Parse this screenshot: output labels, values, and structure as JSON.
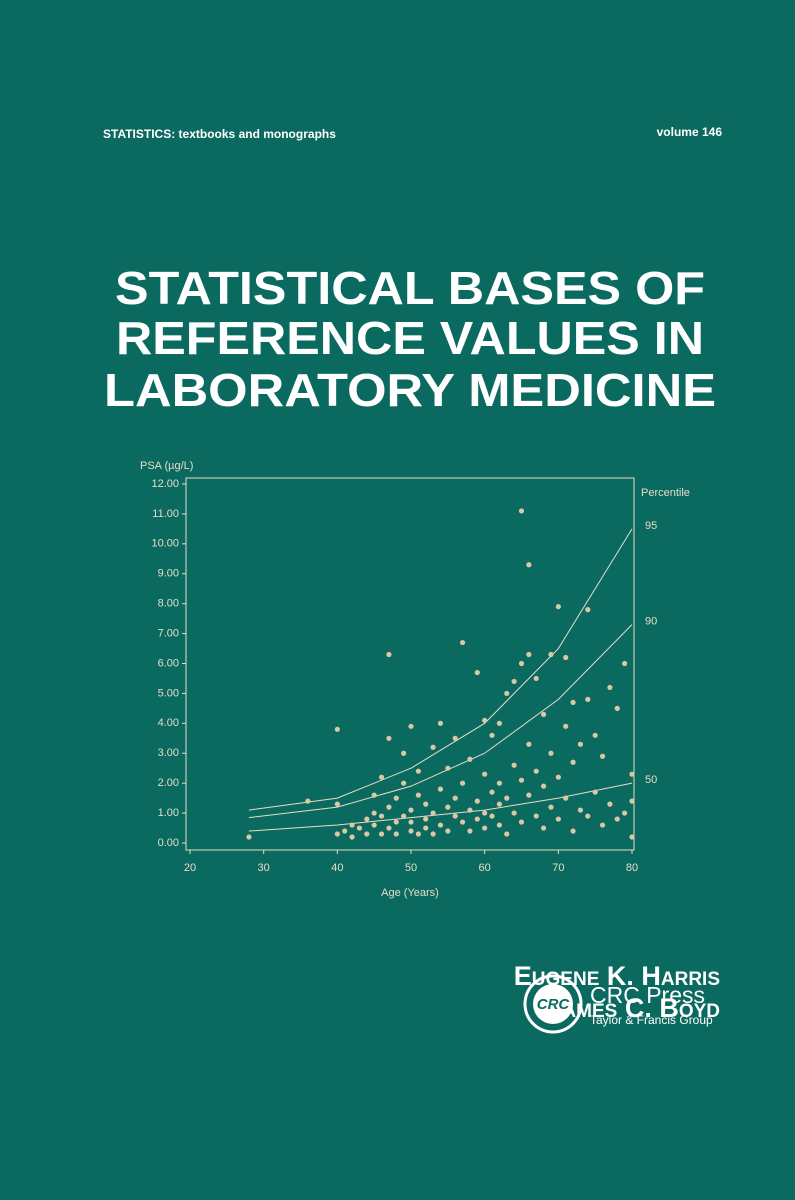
{
  "series_label": "STATISTICS: textbooks and monographs",
  "volume": "volume 146",
  "title": [
    "STATISTICAL BASES OF",
    "REFERENCE VALUES IN",
    "LABORATORY MEDICINE"
  ],
  "authors": [
    "Eugene K. Harris",
    "James C. Boyd"
  ],
  "publisher": {
    "logo": "CRC",
    "name": "CRC Press",
    "group": "Taylor & Francis Group"
  },
  "chart_data": {
    "type": "scatter",
    "y_label": "PSA (µg/L)",
    "x_label": "Age (Years)",
    "curve_legend_title": "Percentile",
    "color": "#dcc7a3",
    "xlim": [
      20,
      80
    ],
    "xticks": [
      20,
      30,
      40,
      50,
      60,
      70,
      80
    ],
    "ylim": [
      0,
      12
    ],
    "yticks": [
      {
        "value": 0,
        "label": "0.00"
      },
      {
        "value": 1,
        "label": "1.00"
      },
      {
        "value": 2,
        "label": "2.00"
      },
      {
        "value": 3,
        "label": "3.00"
      },
      {
        "value": 4,
        "label": "4.00"
      },
      {
        "value": 5,
        "label": "5.00"
      },
      {
        "value": 6,
        "label": "6.00"
      },
      {
        "value": 7,
        "label": "7.00"
      },
      {
        "value": 8,
        "label": "8.00"
      },
      {
        "value": 9,
        "label": "9.00"
      },
      {
        "value": 10,
        "label": "10.00"
      },
      {
        "value": 11,
        "label": "11.00"
      },
      {
        "value": 12,
        "label": "12.00"
      }
    ],
    "x": [
      28,
      36,
      40,
      40,
      40,
      41,
      42,
      42,
      43,
      44,
      44,
      45,
      45,
      45,
      46,
      46,
      46,
      47,
      47,
      47,
      47,
      48,
      48,
      48,
      49,
      49,
      49,
      50,
      50,
      50,
      50,
      51,
      51,
      51,
      52,
      52,
      52,
      53,
      53,
      53,
      54,
      54,
      54,
      55,
      55,
      55,
      56,
      56,
      56,
      57,
      57,
      57,
      58,
      58,
      58,
      59,
      59,
      59,
      60,
      60,
      60,
      60,
      61,
      61,
      61,
      62,
      62,
      62,
      62,
      63,
      63,
      63,
      64,
      64,
      64,
      65,
      65,
      65,
      65,
      66,
      66,
      66,
      66,
      67,
      67,
      67,
      68,
      68,
      68,
      69,
      69,
      69,
      70,
      70,
      70,
      71,
      71,
      71,
      72,
      72,
      72,
      73,
      73,
      74,
      74,
      74,
      75,
      75,
      76,
      76,
      77,
      77,
      78,
      78,
      79,
      79,
      80,
      80,
      80
    ],
    "values": [
      0.2,
      1.4,
      3.8,
      1.3,
      0.3,
      0.4,
      0.2,
      0.6,
      0.5,
      0.8,
      0.3,
      1.0,
      0.6,
      1.6,
      0.3,
      0.9,
      2.2,
      0.5,
      1.2,
      6.3,
      3.5,
      0.7,
      1.5,
      0.3,
      0.9,
      3.0,
      2.0,
      0.4,
      1.1,
      3.9,
      0.7,
      1.6,
      0.3,
      2.4,
      0.8,
      1.3,
      0.5,
      3.2,
      1.0,
      0.3,
      4.0,
      1.8,
      0.6,
      1.2,
      2.5,
      0.4,
      0.9,
      1.5,
      3.5,
      6.7,
      0.7,
      2.0,
      1.1,
      2.8,
      0.4,
      5.7,
      1.4,
      0.8,
      4.1,
      2.3,
      1.0,
      0.5,
      1.7,
      3.6,
      0.9,
      4.0,
      2.0,
      0.6,
      1.3,
      5.0,
      1.5,
      0.3,
      5.4,
      2.6,
      1.0,
      11.1,
      6.0,
      2.1,
      0.7,
      9.3,
      6.3,
      1.6,
      3.3,
      5.5,
      2.4,
      0.9,
      4.3,
      1.9,
      0.5,
      6.3,
      3.0,
      1.2,
      7.9,
      2.2,
      0.8,
      6.2,
      1.5,
      3.9,
      4.7,
      0.4,
      2.7,
      1.1,
      3.3,
      7.8,
      4.8,
      0.9,
      3.6,
      1.7,
      0.6,
      2.9,
      5.2,
      1.3,
      0.8,
      4.5,
      6.0,
      1.0,
      2.3,
      0.2,
      1.4
    ],
    "curves": [
      {
        "name": "95",
        "x": [
          28,
          40,
          50,
          60,
          70,
          80
        ],
        "values": [
          1.1,
          1.5,
          2.5,
          4.0,
          6.5,
          10.5
        ]
      },
      {
        "name": "90",
        "x": [
          28,
          40,
          50,
          60,
          70,
          80
        ],
        "values": [
          0.85,
          1.2,
          1.9,
          3.0,
          4.8,
          7.3
        ]
      },
      {
        "name": "50",
        "x": [
          28,
          40,
          50,
          60,
          70,
          80
        ],
        "values": [
          0.4,
          0.6,
          0.85,
          1.1,
          1.5,
          2.0
        ]
      }
    ]
  }
}
